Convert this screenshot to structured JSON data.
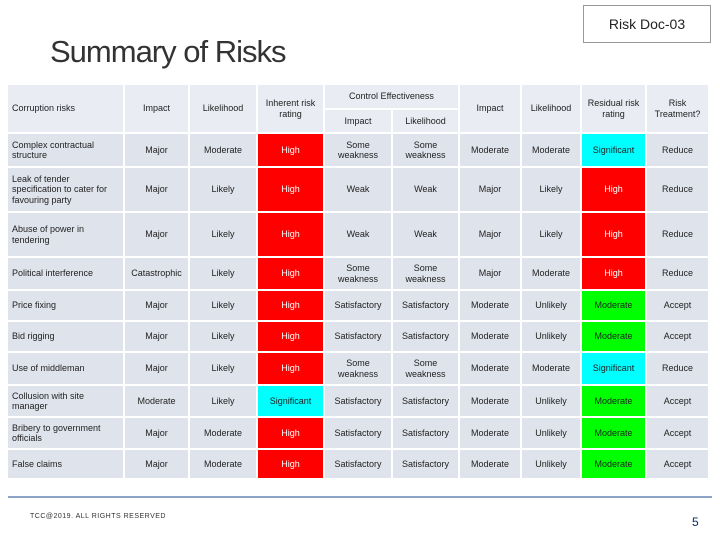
{
  "header": {
    "title": "Summary of Risks",
    "doc_id": "Risk Doc-03"
  },
  "table": {
    "columns": [
      "Corruption risks",
      "Impact",
      "Likelihood",
      "Inherent risk rating",
      "Control Effectiveness",
      "Impact",
      "Likelihood",
      "Residual risk rating",
      "Risk Treatment?"
    ],
    "control_subcolumns": [
      "Impact",
      "Likelihood"
    ],
    "rows": [
      [
        "Complex contractual structure",
        "Major",
        "Moderate",
        "High",
        "Some weakness",
        "Some weakness",
        "Moderate",
        "Moderate",
        "Significant",
        "Reduce"
      ],
      [
        "Leak of tender specification to cater for favouring party",
        "Major",
        "Likely",
        "High",
        "Weak",
        "Weak",
        "Major",
        "Likely",
        "High",
        "Reduce"
      ],
      [
        "Abuse of power in tendering",
        "Major",
        "Likely",
        "High",
        "Weak",
        "Weak",
        "Major",
        "Likely",
        "High",
        "Reduce"
      ],
      [
        "Political interference",
        "Catastrophic",
        "Likely",
        "High",
        "Some weakness",
        "Some weakness",
        "Major",
        "Moderate",
        "High",
        "Reduce"
      ],
      [
        "Price fixing",
        "Major",
        "Likely",
        "High",
        "Satisfactory",
        "Satisfactory",
        "Moderate",
        "Unlikely",
        "Moderate",
        "Accept"
      ],
      [
        "Bid rigging",
        "Major",
        "Likely",
        "High",
        "Satisfactory",
        "Satisfactory",
        "Moderate",
        "Unlikely",
        "Moderate",
        "Accept"
      ],
      [
        "Use of middleman",
        "Major",
        "Likely",
        "High",
        "Some weakness",
        "Some weakness",
        "Moderate",
        "Moderate",
        "Significant",
        "Reduce"
      ],
      [
        "Collusion with site manager",
        "Moderate",
        "Likely",
        "Significant",
        "Satisfactory",
        "Satisfactory",
        "Moderate",
        "Unlikely",
        "Moderate",
        "Accept"
      ],
      [
        "Bribery to government officials",
        "Major",
        "Moderate",
        "High",
        "Satisfactory",
        "Satisfactory",
        "Moderate",
        "Unlikely",
        "Moderate",
        "Accept"
      ],
      [
        "False claims",
        "Major",
        "Moderate",
        "High",
        "Satisfactory",
        "Satisfactory",
        "Moderate",
        "Unlikely",
        "Moderate",
        "Accept"
      ]
    ],
    "rating_colors": {
      "High": "#ff0000",
      "Significant": "#00ffff",
      "Moderate": "#00ff00"
    }
  },
  "footer": {
    "copyright": "TCC@2019. ALL RIGHTS RESERVED",
    "page": "5"
  }
}
